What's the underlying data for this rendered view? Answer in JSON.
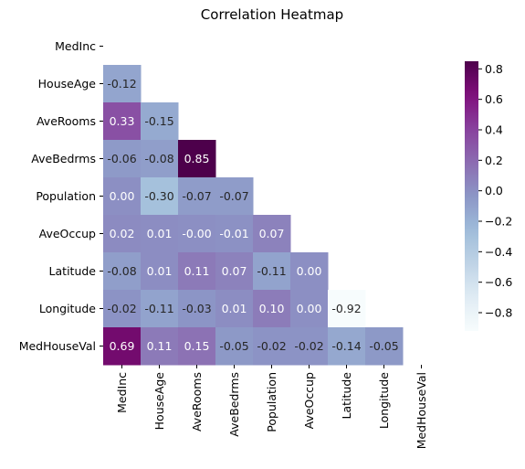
{
  "chart_data": {
    "type": "heatmap",
    "title": "Correlation Heatmap",
    "xlabel": "",
    "ylabel": "",
    "mask": "upper-triangle-and-diagonal",
    "grid": false,
    "colormap": "BuPu",
    "colors": {
      "low": "#f7fcfd",
      "high": "#4d004b"
    },
    "vmin": -0.92,
    "vmax": 0.85,
    "colorbar": {
      "position": "right",
      "ticks": [
        0.8,
        0.6,
        0.4,
        0.2,
        0.0,
        -0.2,
        -0.4,
        -0.6,
        -0.8
      ],
      "tick_labels": [
        "0.8",
        "0.6",
        "0.4",
        "0.2",
        "0.0",
        "−0.2",
        "−0.4",
        "−0.6",
        "−0.8"
      ]
    },
    "rows": [
      "MedInc",
      "HouseAge",
      "AveRooms",
      "AveBedrms",
      "Population",
      "AveOccup",
      "Latitude",
      "Longitude",
      "MedHouseVal"
    ],
    "columns": [
      "MedInc",
      "HouseAge",
      "AveRooms",
      "AveBedrms",
      "Population",
      "AveOccup",
      "Latitude",
      "Longitude",
      "MedHouseVal"
    ],
    "values": [
      [],
      [
        -0.12
      ],
      [
        0.33,
        -0.15
      ],
      [
        -0.06,
        -0.08,
        0.85
      ],
      [
        0.0,
        -0.3,
        -0.07,
        -0.07
      ],
      [
        0.02,
        0.01,
        -0.0,
        -0.01,
        0.07
      ],
      [
        -0.08,
        0.01,
        0.11,
        0.07,
        -0.11,
        0.0
      ],
      [
        -0.02,
        -0.11,
        -0.03,
        0.01,
        0.1,
        0.0,
        -0.92
      ],
      [
        0.69,
        0.11,
        0.15,
        -0.05,
        -0.02,
        -0.02,
        -0.14,
        -0.05
      ]
    ],
    "annotations": [
      [],
      [
        "-0.12"
      ],
      [
        "0.33",
        "-0.15"
      ],
      [
        "-0.06",
        "-0.08",
        "0.85"
      ],
      [
        "0.00",
        "-0.30",
        "-0.07",
        "-0.07"
      ],
      [
        "0.02",
        "0.01",
        "-0.00",
        "-0.01",
        "0.07"
      ],
      [
        "-0.08",
        "0.01",
        "0.11",
        "0.07",
        "-0.11",
        "0.00"
      ],
      [
        "-0.02",
        "-0.11",
        "-0.03",
        "0.01",
        "0.10",
        "0.00",
        "-0.92"
      ],
      [
        "0.69",
        "0.11",
        "0.15",
        "-0.05",
        "-0.02",
        "-0.02",
        "-0.14",
        "-0.05"
      ]
    ]
  }
}
